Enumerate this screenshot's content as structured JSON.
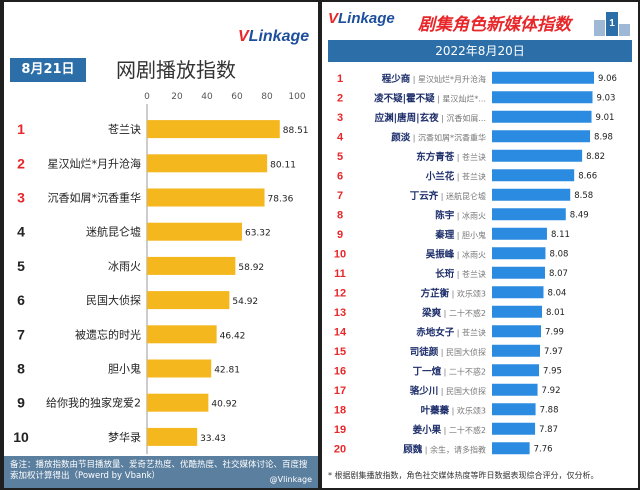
{
  "left": {
    "logo": {
      "v": "V",
      "rest": "Linkage"
    },
    "date_badge": "8月21日",
    "title": "网剧播放指数",
    "footer": "备注：播放指数由节目播放量、爱奇艺热度、优酷热度、社交媒体讨论、百度搜索加权计算得出（Powerd by Vbank）",
    "weibo": "@Vlinkage"
  },
  "right": {
    "logo": {
      "v": "V",
      "rest": "Linkage"
    },
    "title": "剧集角色新媒体指数",
    "date_bar": "2022年8月20日",
    "footer": "* 根据剧集播放指数，角色社交媒体热度等昨日数据表现综合评分，仅分析。"
  },
  "chart_data": [
    {
      "type": "bar",
      "title": "网剧播放指数",
      "ranks": [
        1,
        2,
        3,
        4,
        5,
        6,
        7,
        8,
        9,
        10
      ],
      "categories": [
        "苍兰诀",
        "星汉灿烂*月升沧海",
        "沉香如屑*沉香重华",
        "迷航昆仑墟",
        "冰雨火",
        "民国大侦探",
        "被遗忘的时光",
        "胆小鬼",
        "给你我的独家宠爱2",
        "梦华录"
      ],
      "values": [
        88.51,
        80.11,
        78.36,
        63.32,
        58.92,
        54.92,
        46.42,
        42.81,
        40.92,
        33.43
      ],
      "ylim": [
        0,
        100
      ],
      "ticks": [
        0,
        20,
        40,
        60,
        80,
        100
      ],
      "bar_color": "#f5b71e",
      "top_rank_color": "#e8272a"
    },
    {
      "type": "bar",
      "title": "剧集角色新媒体指数",
      "ranks": [
        1,
        2,
        3,
        4,
        5,
        6,
        7,
        8,
        9,
        10,
        11,
        12,
        13,
        14,
        15,
        16,
        17,
        18,
        19,
        20
      ],
      "categories": [
        "程少商",
        "凌不疑|霍不疑",
        "应渊|唐周|玄夜",
        "颜淡",
        "东方青苍",
        "小兰花",
        "丁云齐",
        "陈宇",
        "秦理",
        "吴振峰",
        "长珩",
        "方芷衡",
        "梁爽",
        "赤地女子",
        "司徒颜",
        "丁一煊",
        "骆少川",
        "叶蓁蓁",
        "姜小果",
        "顾魏"
      ],
      "dramas": [
        "星汉灿烂*月升沧海",
        "星汉灿烂*...",
        "沉香如屑...",
        "沉香如屑*沉香重华",
        "苍兰诀",
        "苍兰诀",
        "迷航昆仑墟",
        "冰雨火",
        "胆小鬼",
        "冰雨火",
        "苍兰诀",
        "欢乐颂3",
        "二十不惑2",
        "苍兰诀",
        "民国大侦探",
        "二十不惑2",
        "民国大侦探",
        "欢乐颂3",
        "二十不惑2",
        "余生，请多指教"
      ],
      "values": [
        9.06,
        9.03,
        9.01,
        8.98,
        8.82,
        8.66,
        8.58,
        8.49,
        8.11,
        8.08,
        8.07,
        8.04,
        8.01,
        7.99,
        7.97,
        7.95,
        7.92,
        7.88,
        7.87,
        7.76
      ],
      "bar_color": "#2b8be0",
      "rank_color": "#e8272a",
      "name_color": "#1e2f6b"
    }
  ]
}
